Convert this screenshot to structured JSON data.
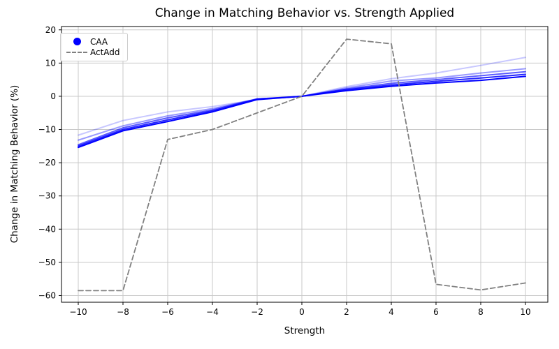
{
  "chart_data": {
    "type": "line",
    "title": "Change in Matching Behavior vs. Strength Applied",
    "xlabel": "Strength",
    "ylabel": "Change in Matching Behavior (%)",
    "x": [
      -10,
      -8,
      -6,
      -4,
      -2,
      0,
      2,
      4,
      6,
      8,
      10
    ],
    "xlim": [
      -10.75,
      11.0
    ],
    "ylim": [
      -62,
      21
    ],
    "xticks": [
      -10,
      -8,
      -6,
      -4,
      -2,
      0,
      2,
      4,
      6,
      8,
      10
    ],
    "yticks": [
      20,
      10,
      0,
      -10,
      -20,
      -30,
      -40,
      -50,
      -60
    ],
    "grid": true,
    "legend_position": "upper-left",
    "colors": {
      "caa": "#0000ff",
      "actadd": "#808080",
      "grid": "#c8c8c8",
      "spine": "#000000"
    },
    "legend": {
      "entries": [
        {
          "label": "CAA",
          "marker": "circle",
          "color": "#0000ff"
        },
        {
          "label": "ActAdd",
          "marker": "dashed-line",
          "color": "#808080"
        }
      ]
    },
    "series": [
      {
        "name": "CAA line 1",
        "group": "CAA",
        "color": "#0000ff",
        "alpha": 1.0,
        "dash": "solid",
        "values": [
          -15.4,
          -10.4,
          -7.6,
          -4.7,
          -1.0,
          0,
          1.7,
          3.0,
          4.0,
          4.8,
          6.0
        ]
      },
      {
        "name": "CAA line 2",
        "group": "CAA",
        "color": "#0000ff",
        "alpha": 0.85,
        "dash": "solid",
        "values": [
          -15.0,
          -10.0,
          -7.1,
          -4.4,
          -0.9,
          0,
          2.0,
          3.4,
          4.5,
          5.5,
          6.6
        ]
      },
      {
        "name": "CAA line 3",
        "group": "CAA",
        "color": "#0000ff",
        "alpha": 0.65,
        "dash": "solid",
        "values": [
          -14.6,
          -9.5,
          -6.5,
          -4.1,
          -0.8,
          0,
          2.2,
          3.9,
          5.0,
          6.2,
          7.4
        ]
      },
      {
        "name": "CAA line 4",
        "group": "CAA",
        "color": "#0000ff",
        "alpha": 0.4,
        "dash": "solid",
        "values": [
          -13.2,
          -8.9,
          -5.9,
          -3.7,
          -0.8,
          0,
          2.5,
          4.6,
          5.5,
          7.0,
          8.3
        ]
      },
      {
        "name": "CAA line 5",
        "group": "CAA",
        "color": "#0000ff",
        "alpha": 0.22,
        "dash": "solid",
        "values": [
          -11.7,
          -7.3,
          -4.7,
          -3.1,
          -1.0,
          0,
          2.9,
          5.3,
          7.0,
          9.3,
          11.7
        ]
      },
      {
        "name": "ActAdd",
        "group": "ActAdd",
        "color": "#808080",
        "alpha": 1.0,
        "dash": "dashed",
        "values": [
          -58.5,
          -58.5,
          -13.0,
          -10.0,
          -5.0,
          0,
          17.2,
          15.8,
          -56.6,
          -58.3,
          -56.2
        ]
      }
    ]
  }
}
